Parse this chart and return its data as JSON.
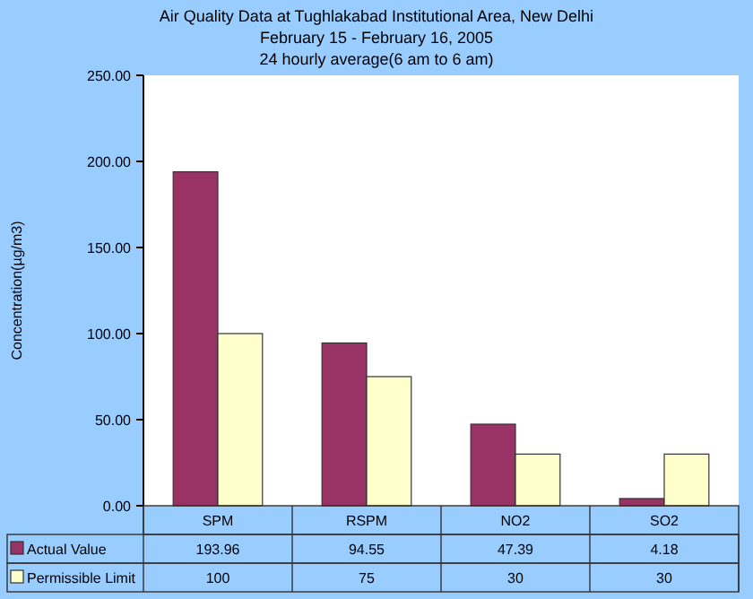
{
  "chart_data": {
    "type": "bar",
    "title": "Air Quality Data at Tughlakabad Institutional Area, New Delhi",
    "subtitle": "February 15  - February 16, 2005",
    "annotations": [
      "24 hourly average(6 am to 6 am)"
    ],
    "ylabel": "Concentration(µg/m3)",
    "categories": [
      "SPM",
      "RSPM",
      "NO2",
      "SO2"
    ],
    "series": [
      {
        "name": "Actual Value",
        "color": "#993366",
        "values": [
          193.96,
          94.55,
          47.39,
          4.18
        ]
      },
      {
        "name": "Permissible Limit",
        "color": "#ffffcc",
        "values": [
          100,
          75,
          30,
          30
        ]
      }
    ],
    "ylim": [
      0,
      250
    ],
    "yticks": [
      {
        "value": 0,
        "label": "0.00"
      },
      {
        "value": 50,
        "label": "50.00"
      },
      {
        "value": 100,
        "label": "100.00"
      },
      {
        "value": 150,
        "label": "150.00"
      },
      {
        "value": 200,
        "label": "200.00"
      },
      {
        "value": 250,
        "label": "250.00"
      }
    ],
    "data_labels": true,
    "legend": "bottom"
  }
}
